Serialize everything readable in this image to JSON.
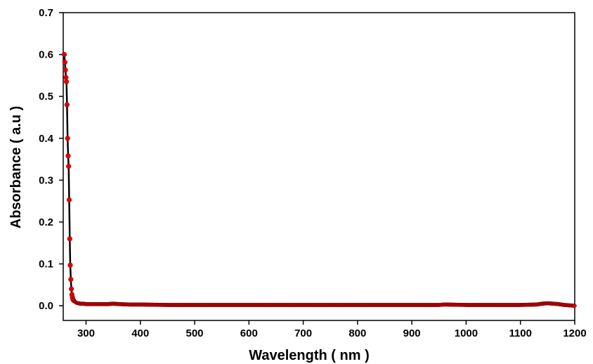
{
  "chart_data": {
    "type": "line",
    "xlabel": "Wavelength ( nm )",
    "ylabel": "Absorbance ( a.u )",
    "xlim": [
      258,
      1200
    ],
    "ylim": [
      -0.035,
      0.7
    ],
    "x_ticks": [
      "300",
      "400",
      "500",
      "600",
      "700",
      "800",
      "900",
      "1000",
      "1100",
      "1200"
    ],
    "y_ticks": [
      "0.0",
      "0.1",
      "0.2",
      "0.3",
      "0.4",
      "0.5",
      "0.6",
      "0.7"
    ],
    "line_color": "#000000",
    "marker_color": "#e00000",
    "series": [
      {
        "x": [
          260,
          262,
          263,
          264,
          265,
          266,
          267,
          268,
          269,
          270,
          271,
          272,
          273,
          274,
          275,
          276,
          278,
          280,
          283,
          286,
          290,
          295,
          300,
          310,
          320,
          330,
          340,
          350,
          360,
          380,
          400,
          450,
          500,
          550,
          600,
          650,
          700,
          750,
          800,
          850,
          900,
          950,
          960,
          1000,
          1050,
          1100,
          1130,
          1140,
          1150,
          1160,
          1170,
          1180,
          1190,
          1200
        ],
        "y": [
          0.6,
          0.563,
          0.545,
          0.535,
          0.48,
          0.4,
          0.358,
          0.333,
          0.253,
          0.16,
          0.097,
          0.063,
          0.04,
          0.027,
          0.02,
          0.015,
          0.011,
          0.009,
          0.007,
          0.006,
          0.005,
          0.005,
          0.004,
          0.004,
          0.004,
          0.004,
          0.004,
          0.005,
          0.004,
          0.003,
          0.003,
          0.002,
          0.002,
          0.002,
          0.002,
          0.002,
          0.002,
          0.002,
          0.002,
          0.002,
          0.002,
          0.002,
          0.003,
          0.002,
          0.002,
          0.002,
          0.003,
          0.005,
          0.006,
          0.005,
          0.004,
          0.002,
          0.001,
          0.0
        ]
      }
    ]
  }
}
